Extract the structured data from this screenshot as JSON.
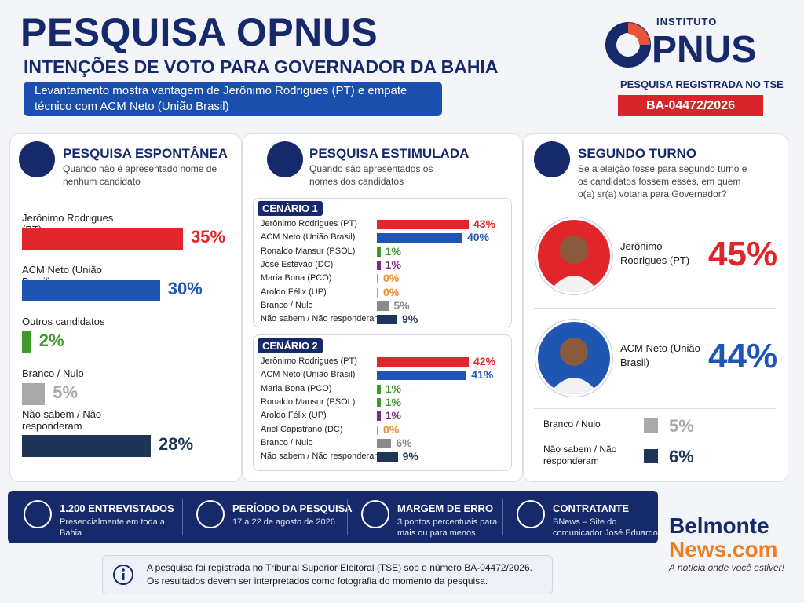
{
  "header": {
    "title": "PESQUISA OPNUS",
    "subtitle": "INTENÇÕES DE VOTO PARA GOVERNADOR DA BAHIA",
    "highlight": "Levantamento mostra vantagem de Jerônimo Rodrigues (PT) e empate técnico com ACM Neto (União Brasil)",
    "logo_top": "INSTITUTO",
    "logo_name": "PNUS",
    "registered": "PESQUISA REGISTRADA NO TSE",
    "code": "BA-04472/2026"
  },
  "chart_data": [
    {
      "type": "bar",
      "title": "PESQUISA ESPONTÂNEA",
      "subtitle": "Quando não é apresentado nome de nenhum candidato",
      "categories": [
        "Jerônimo Rodrigues (PT)",
        "ACM Neto (União Brasil)",
        "Outros candidatos",
        "Branco / Nulo",
        "Não sabem / Não responderam"
      ],
      "values": [
        35,
        30,
        2,
        5,
        28
      ],
      "value_labels": [
        "35%",
        "30%",
        "2%",
        "5%",
        "28%"
      ],
      "colors": [
        "#e0262b",
        "#1f56b3",
        "#3f9a2e",
        "#a9a9a9",
        "#1f3557"
      ]
    },
    {
      "type": "bar",
      "title": "PESQUISA ESTIMULADA",
      "subtitle": "Quando são apresentados os nomes dos candidatos",
      "scenario": "CENÁRIO 1",
      "categories": [
        "Jerônimo Rodrigues (PT)",
        "ACM Neto (União Brasil)",
        "Ronaldo Mansur (PSOL)",
        "José Estêvão (DC)",
        "Maria Bona (PCO)",
        "Aroldo Félix (UP)",
        "Branco / Nulo",
        "Não sabem / Não responderam"
      ],
      "values": [
        43,
        40,
        1,
        1,
        0,
        0,
        5,
        9
      ],
      "value_labels": [
        "43%",
        "40%",
        "1%",
        "1%",
        "0%",
        "0%",
        "5%",
        "9%"
      ],
      "colors": [
        "#e0262b",
        "#1f56b3",
        "#3f9a2e",
        "#7b2a8c",
        "#f0902a",
        "#f0902a",
        "#8a8a8a",
        "#1f3557"
      ]
    },
    {
      "type": "bar",
      "scenario": "CENÁRIO 2",
      "categories": [
        "Jerônimo Rodrigues (PT)",
        "ACM Neto (União Brasil)",
        "Maria Bona (PCO)",
        "Ronaldo Mansur (PSOL)",
        "Aroldo Félix (UP)",
        "Ariel Capistrano (DC)",
        "Branco / Nulo",
        "Não sabem / Não responderam"
      ],
      "values": [
        42,
        41,
        1,
        1,
        1,
        0,
        6,
        9
      ],
      "value_labels": [
        "42%",
        "41%",
        "1%",
        "1%",
        "1%",
        "0%",
        "6%",
        "9%"
      ],
      "colors": [
        "#e0262b",
        "#1f56b3",
        "#3f9a2e",
        "#3f9a2e",
        "#7b2a8c",
        "#f0902a",
        "#8a8a8a",
        "#1f3557"
      ]
    },
    {
      "type": "cards",
      "title": "SEGUNDO TURNO",
      "subtitle": "Se a eleição fosse para segundo turno e os candidatos fossem esses, em quem o(a) sr(a) votaria para Governador?",
      "categories": [
        "Jerônimo Rodrigues (PT)",
        "ACM Neto (União Brasil)",
        "Branco / Nulo",
        "Não sabem / Não responderam"
      ],
      "values": [
        45,
        44,
        5,
        6
      ],
      "value_labels": [
        "45%",
        "44%",
        "5%",
        "6%"
      ],
      "colors": [
        "#e0262b",
        "#1f56b3",
        "#a9a9a9",
        "#1f3557"
      ]
    }
  ],
  "footer": {
    "items": [
      {
        "title": "1.200 ENTREVISTADOS",
        "text": "Presencialmente em toda a Bahia"
      },
      {
        "title": "PERÍODO DA PESQUISA",
        "text": "17 a 22 de agosto de 2026"
      },
      {
        "title": "MARGEM DE ERRO",
        "text": "3 pontos percentuais para mais ou para menos"
      },
      {
        "title": "CONTRATANTE",
        "text": "BNews – Site do comunicador José Eduardo"
      }
    ],
    "note": "A pesquisa foi registrada no Tribunal Superior Eleitoral (TSE) sob o número BA-04472/2026. Os resultados devem ser interpretados como fotografia do momento da pesquisa.",
    "brand_a": "Belmonte",
    "brand_b": "News.com",
    "slogan": "A notícia onde você estiver!"
  }
}
